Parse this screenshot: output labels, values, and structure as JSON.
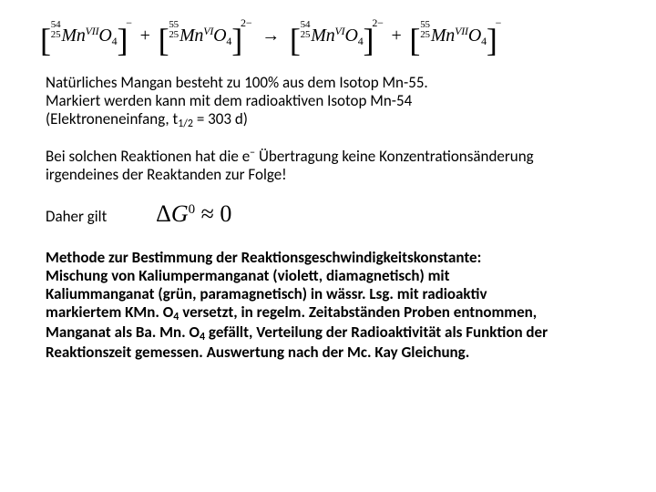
{
  "equation": {
    "terms": [
      {
        "massTop": "54",
        "massBot": "25",
        "element": "Mn",
        "oxState": "VII",
        "oxygen": "O",
        "oxyCount": "4",
        "charge": "−"
      },
      {
        "massTop": "55",
        "massBot": "25",
        "element": "Mn",
        "oxState": "VI",
        "oxygen": "O",
        "oxyCount": "4",
        "charge": "2−"
      },
      {
        "massTop": "54",
        "massBot": "25",
        "element": "Mn",
        "oxState": "VI",
        "oxygen": "O",
        "oxyCount": "4",
        "charge": "2−"
      },
      {
        "massTop": "55",
        "massBot": "25",
        "element": "Mn",
        "oxState": "VII",
        "oxygen": "O",
        "oxyCount": "4",
        "charge": "−"
      }
    ],
    "plus": "+",
    "arrow": "→"
  },
  "para1": {
    "line1": "Natürliches Mangan besteht zu 100% aus dem Isotop Mn-55.",
    "line2": "Markiert werden kann mit dem radioaktiven Isotop Mn-54",
    "line3a": "(Elektroneneinfang, t",
    "line3sub": "1/2",
    "line3b": " = 303 d)"
  },
  "para2": {
    "a": "Bei solchen Reaktionen hat die e",
    "sup": "−",
    "b": " Übertragung keine Konzentrationsänderung",
    "c": "irgendeines der Reaktanden zur Folge!"
  },
  "para3": {
    "label": "Daher gilt",
    "dg_delta": "Δ",
    "dg_G": "G",
    "dg_sup": "0",
    "dg_approx": " ≈ 0"
  },
  "para4": {
    "l1": "Methode zur Bestimmung der Reaktionsgeschwindigkeitskonstante:",
    "l2": "Mischung von Kaliumpermanganat (violett, diamagnetisch) mit",
    "l3": "Kaliummanganat (grün, paramagnetisch) in wässr. Lsg. mit radioaktiv",
    "l4": "markiertem KMn. O",
    "l4sub": "4",
    "l4b": " versetzt, in regelm. Zeitabständen Proben entnommen,",
    "l5": "Manganat als Ba. Mn. O",
    "l5sub": "4",
    "l5b": " gefällt, Verteilung der Radioaktivität als Funktion der",
    "l6": "Reaktionszeit gemessen.  Auswertung nach der Mc. Kay Gleichung."
  },
  "style": {
    "background": "#ffffff",
    "textColor": "#000000",
    "bodyFont": "Calibri",
    "mathFont": "Times New Roman",
    "bodyFontSizePt": 13,
    "equationFontSizePt": 15,
    "slideWidthPx": 720,
    "slideHeightPx": 540
  }
}
